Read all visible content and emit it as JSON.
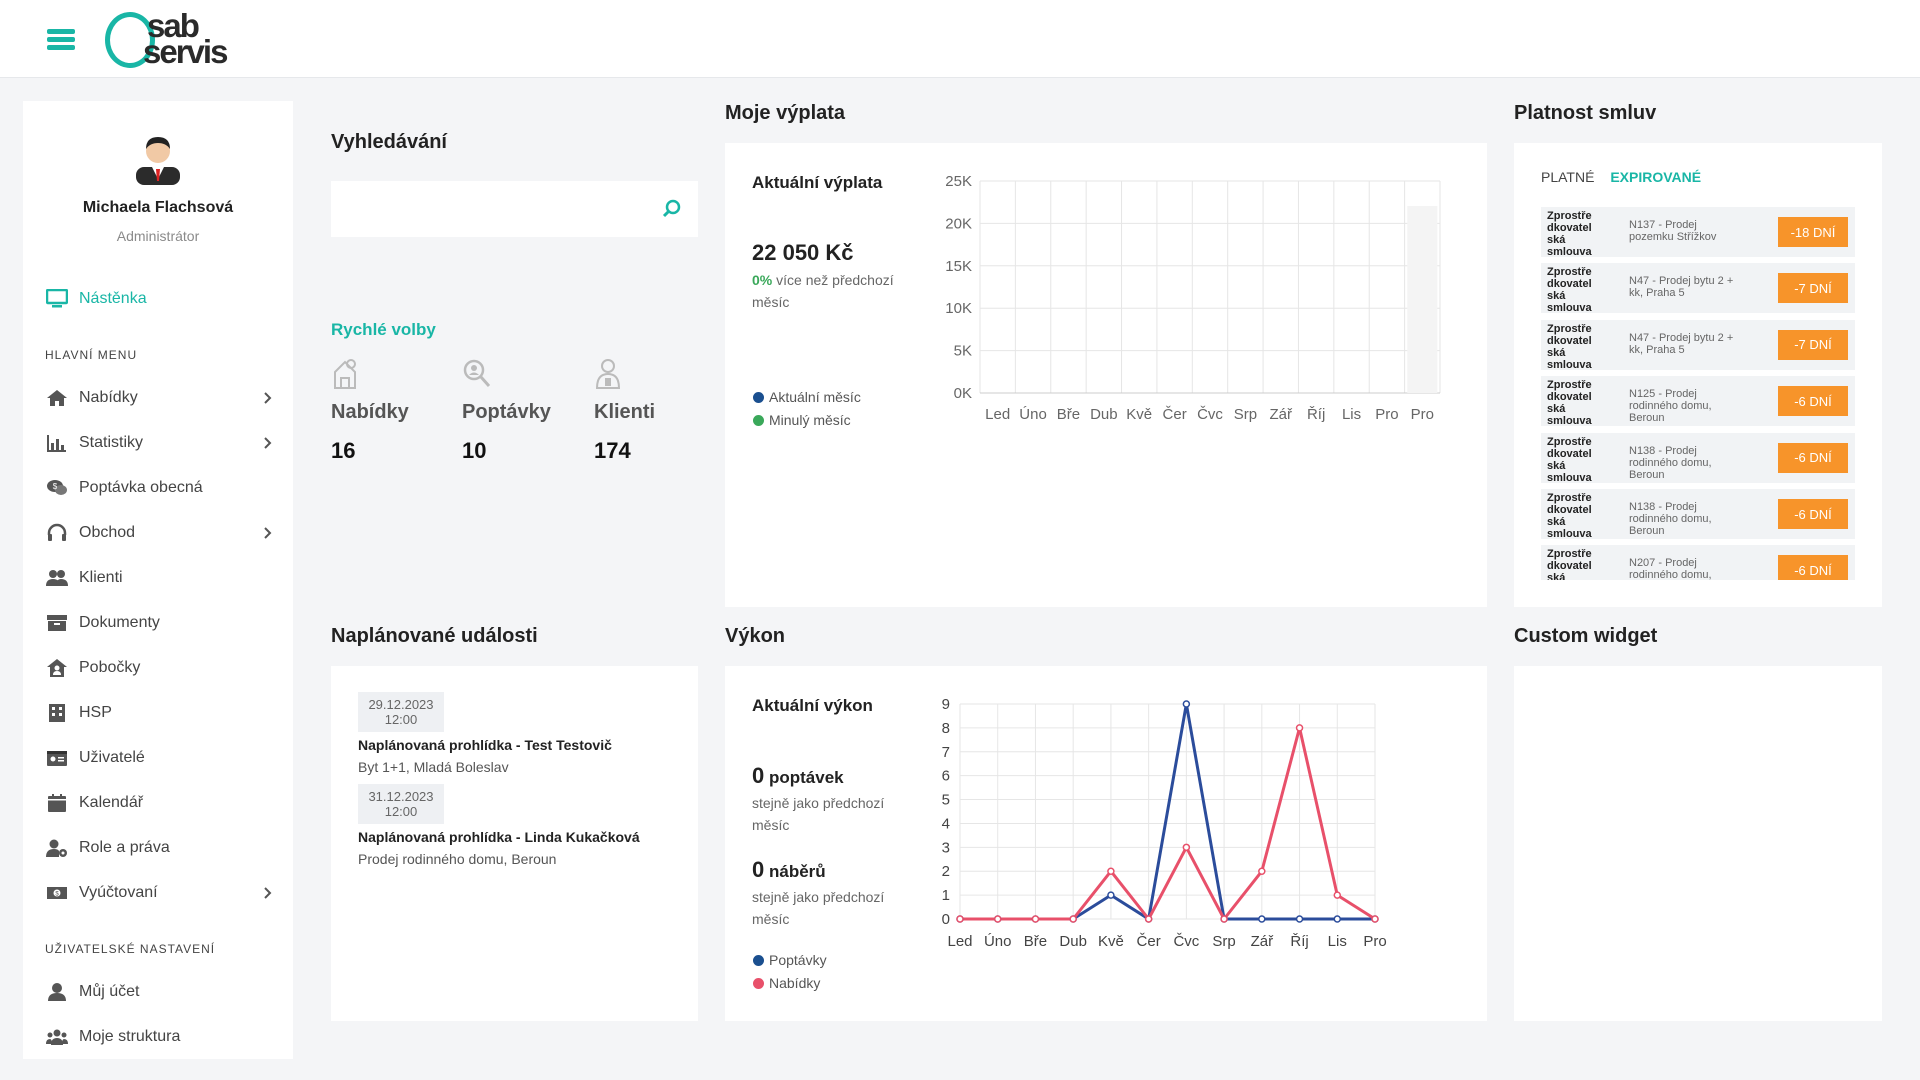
{
  "header": {
    "menu_icon": "hamburger-icon",
    "logo_line1": "sab",
    "logo_line2": "servis"
  },
  "user": {
    "name": "Michaela Flachsová",
    "role": "Administrátor"
  },
  "sidebar": {
    "dashboard": "Nástěnka",
    "main_menu_title": "HLAVNÍ MENU",
    "items": [
      {
        "label": "Nabídky",
        "icon": "home-icon",
        "has_submenu": true
      },
      {
        "label": "Statistiky",
        "icon": "bar-chart-icon",
        "has_submenu": true
      },
      {
        "label": "Poptávka obecná",
        "icon": "comments-dollar-icon",
        "has_submenu": false
      },
      {
        "label": "Obchod",
        "icon": "headset-icon",
        "has_submenu": true
      },
      {
        "label": "Klienti",
        "icon": "users-icon",
        "has_submenu": false
      },
      {
        "label": "Dokumenty",
        "icon": "archive-icon",
        "has_submenu": false
      },
      {
        "label": "Pobočky",
        "icon": "house-user-icon",
        "has_submenu": false
      },
      {
        "label": "HSP",
        "icon": "building-icon",
        "has_submenu": false
      },
      {
        "label": "Uživatelé",
        "icon": "id-card-icon",
        "has_submenu": false
      },
      {
        "label": "Kalendář",
        "icon": "calendar-icon",
        "has_submenu": false
      },
      {
        "label": "Role a práva",
        "icon": "user-cog-icon",
        "has_submenu": false
      },
      {
        "label": "Vyúčtovaní",
        "icon": "money-bill-icon",
        "has_submenu": true
      }
    ],
    "user_settings_title": "UŽIVATELSKÉ NASTAVENÍ",
    "user_items": [
      {
        "label": "Můj účet",
        "icon": "user-icon"
      },
      {
        "label": "Moje struktura",
        "icon": "users-group-icon"
      }
    ]
  },
  "search": {
    "title": "Vyhledávání",
    "placeholder": ""
  },
  "quick": {
    "title": "Rychlé volby",
    "items": [
      {
        "label": "Nabídky",
        "value": "16"
      },
      {
        "label": "Poptávky",
        "value": "10"
      },
      {
        "label": "Klienti",
        "value": "174"
      }
    ]
  },
  "payout": {
    "title": "Moje výplata",
    "subtitle": "Aktuální výplata",
    "amount": "22 050 Kč",
    "pct": "0%",
    "pct_text": " více než předchozí",
    "pct_text2": "měsíc",
    "legend_current": "Aktuální měsíc",
    "legend_prev": "Minulý měsíc",
    "legend_current_color": "#1a4f8f",
    "legend_prev_color": "#3aa85a"
  },
  "contracts": {
    "title": "Platnost smluv",
    "tab_valid": "PLATNÉ",
    "tab_expired": "EXPIROVANÉ",
    "rows": [
      {
        "type": [
          "Zprostře",
          "dkovatel",
          "ská",
          "smlouva"
        ],
        "desc": [
          "N137 - Prodej",
          "pozemku Střížkov"
        ],
        "badge": "-18 DNÍ"
      },
      {
        "type": [
          "Zprostře",
          "dkovatel",
          "ská",
          "smlouva"
        ],
        "desc": [
          "N47 - Prodej bytu 2 +",
          "kk, Praha 5"
        ],
        "badge": "-7 DNÍ"
      },
      {
        "type": [
          "Zprostře",
          "dkovatel",
          "ská",
          "smlouva"
        ],
        "desc": [
          "N47 - Prodej bytu 2 +",
          "kk, Praha 5"
        ],
        "badge": "-7 DNÍ"
      },
      {
        "type": [
          "Zprostře",
          "dkovatel",
          "ská",
          "smlouva"
        ],
        "desc": [
          "N125 - Prodej",
          "rodinného domu,",
          "Beroun"
        ],
        "badge": "-6 DNÍ"
      },
      {
        "type": [
          "Zprostře",
          "dkovatel",
          "ská",
          "smlouva"
        ],
        "desc": [
          "N138 - Prodej",
          "rodinného domu,",
          "Beroun"
        ],
        "badge": "-6 DNÍ"
      },
      {
        "type": [
          "Zprostře",
          "dkovatel",
          "ská",
          "smlouva"
        ],
        "desc": [
          "N138 - Prodej",
          "rodinného domu,",
          "Beroun"
        ],
        "badge": "-6 DNÍ"
      },
      {
        "type": [
          "Zprostře",
          "dkovatel",
          "ská"
        ],
        "desc": [
          "N207 - Prodej",
          "rodinného domu,"
        ],
        "badge": "-6 DNÍ"
      }
    ]
  },
  "events": {
    "title": "Naplánované události",
    "items": [
      {
        "date": "29.12.2023",
        "time": "12:00",
        "title": "Naplánovaná prohlídka - Test Testovič",
        "sub": "Byt 1+1, Mladá Boleslav"
      },
      {
        "date": "31.12.2023",
        "time": "12:00",
        "title": "Naplánovaná prohlídka - Linda Kukačková",
        "sub": "Prodej rodinného domu, Beroun"
      }
    ]
  },
  "performance": {
    "title": "Výkon",
    "subtitle": "Aktuální výkon",
    "demands_value": "0",
    "demands_label": "poptávek",
    "demands_note1": "stejně jako předchozí",
    "demands_note2": "měsíc",
    "acq_value": "0",
    "acq_label": "náběrů",
    "acq_note1": "stejně jako předchozí",
    "acq_note2": "měsíc",
    "legend_demands": "Poptávky",
    "legend_offers": "Nabídky",
    "legend_demands_color": "#1a4f8f",
    "legend_offers_color": "#e8506a"
  },
  "custom": {
    "title": "Custom widget"
  },
  "chart_data": [
    {
      "type": "bar",
      "categories": [
        "Led",
        "Úno",
        "Bře",
        "Dub",
        "Kvě",
        "Čer",
        "Čvc",
        "Srp",
        "Zář",
        "Říj",
        "Lis",
        "Pro",
        "Pro"
      ],
      "series": [
        {
          "values": [
            0,
            0,
            0,
            0,
            0,
            0,
            0,
            0,
            0,
            0,
            0,
            0,
            22050
          ]
        }
      ],
      "ylim": [
        0,
        25000
      ],
      "y_ticks": [
        "0K",
        "5K",
        "10K",
        "15K",
        "20K",
        "25K"
      ],
      "grid": true
    },
    {
      "type": "line",
      "categories": [
        "Led",
        "Úno",
        "Bře",
        "Dub",
        "Kvě",
        "Čer",
        "Čvc",
        "Srp",
        "Zář",
        "Říj",
        "Lis",
        "Pro"
      ],
      "series": [
        {
          "name": "Poptávky",
          "color": "#2b4c9b",
          "values": [
            0,
            0,
            0,
            0,
            1,
            0,
            9,
            0,
            0,
            0,
            0,
            0
          ]
        },
        {
          "name": "Nabídky",
          "color": "#e8506a",
          "values": [
            0,
            0,
            0,
            0,
            2,
            0,
            3,
            0,
            2,
            8,
            1,
            0
          ]
        }
      ],
      "ylim": [
        0,
        9
      ],
      "y_ticks": [
        "0",
        "1",
        "2",
        "3",
        "4",
        "5",
        "6",
        "7",
        "8",
        "9"
      ],
      "grid": true
    }
  ]
}
